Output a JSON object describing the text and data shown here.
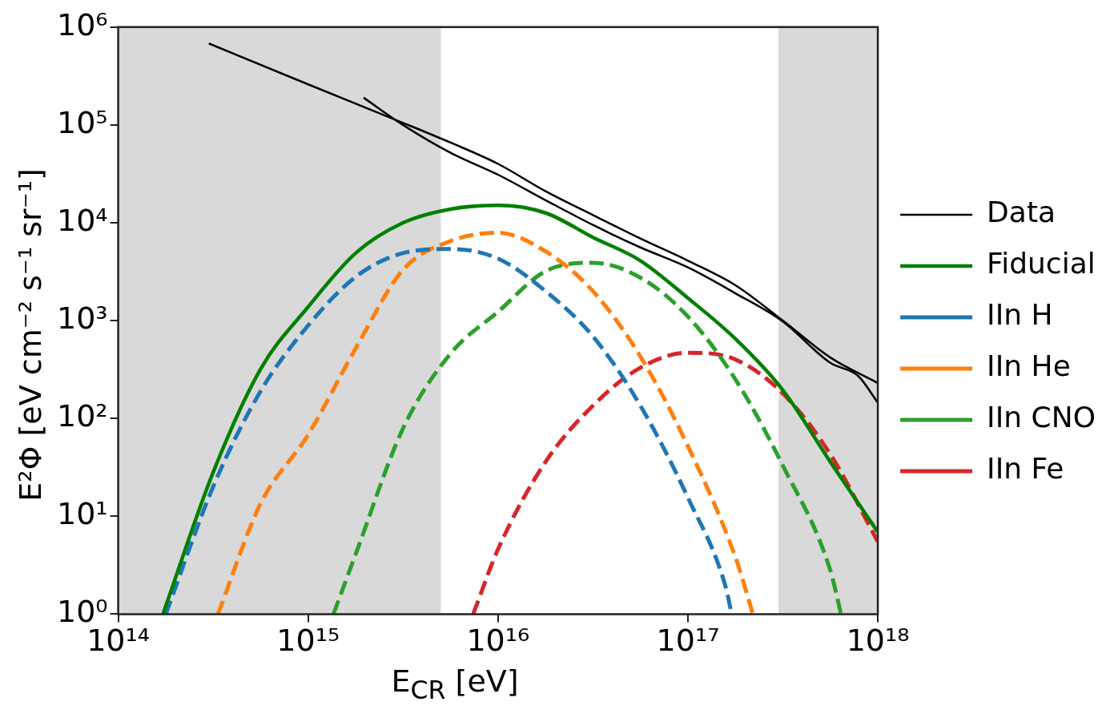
{
  "chart_data": {
    "type": "line",
    "xlabel": "E$_{CR}$ [eV]",
    "ylabel": "E²Φ [eV cm⁻² s⁻¹ sr⁻¹]",
    "log": "xy",
    "xlim": [
      100000000000000.0,
      1e+18
    ],
    "xticks": [
      {
        "value": 100000000000000.0,
        "label": "10¹⁴"
      },
      {
        "value": 1000000000000000.0,
        "label": "10¹⁵"
      },
      {
        "value": 1e+16,
        "label": "10¹⁶"
      },
      {
        "value": 1e+17,
        "label": "10¹⁷"
      },
      {
        "value": 1e+18,
        "label": "10¹⁸"
      }
    ],
    "ylim": [
      1,
      1000000.0
    ],
    "yticks": [
      {
        "value": 1,
        "label": "10⁰"
      },
      {
        "value": 10,
        "label": "10¹"
      },
      {
        "value": 100,
        "label": "10²"
      },
      {
        "value": 1000,
        "label": "10³"
      },
      {
        "value": 10000,
        "label": "10⁴"
      },
      {
        "value": 100000,
        "label": "10⁵"
      },
      {
        "value": 1000000,
        "label": "10⁶"
      }
    ],
    "grid": false,
    "legend": "right",
    "bands": [
      {
        "axis": "x",
        "from": 100000000000000.0,
        "to": 5000000000000000.0,
        "color": "#d9d9d9"
      },
      {
        "axis": "x",
        "from": 3e+17,
        "to": 1e+18,
        "color": "#d9d9d9"
      }
    ],
    "series": [
      {
        "name": "Data",
        "color": "#000000",
        "line_style": "solid",
        "x": [
          300000000000000.0,
          1000000000000000.0,
          3160000000000000.0,
          5620000000000000.0,
          1e+16,
          1.78e+16,
          3.16e+16,
          5.62e+16,
          1e+17,
          1.78e+17,
          3.16e+17,
          5.62e+17,
          1e+18
        ],
        "values": [
          680000,
          260000,
          105000,
          66000,
          40000,
          21000,
          12000,
          6900,
          4100,
          2300,
          1000,
          420,
          230
        ]
      },
      {
        "color": "#000000",
        "line_style": "solid",
        "x": [
          1960000000000000.0,
          3160000000000000.0,
          5620000000000000.0,
          1e+16,
          1.78e+16,
          3.16e+16,
          5.62e+16,
          1e+17,
          1.78e+17,
          3.16e+17,
          5.62e+17,
          7.9e+17,
          1e+18
        ],
        "values": [
          190000,
          100000,
          52000,
          31000,
          17000,
          9500,
          5600,
          3500,
          1900,
          980,
          370,
          270,
          145
        ]
      },
      {
        "name": "Fiducial",
        "color": "#008000",
        "line_style": "solid",
        "x": [
          172000000000000.0,
          316000000000000.0,
          562000000000000.0,
          1000000000000000.0,
          1780000000000000.0,
          3160000000000000.0,
          5620000000000000.0,
          1e+16,
          1.78e+16,
          3.16e+16,
          5.62e+16,
          1e+17,
          1.78e+17,
          3.16e+17,
          5.62e+17,
          1e+18
        ],
        "values": [
          1,
          28,
          320,
          1380,
          4900,
          10000,
          13800,
          15100,
          12600,
          7100,
          4100,
          1700,
          650,
          195,
          36,
          6.9
        ]
      },
      {
        "name": "IIn H",
        "color": "#1f77b4",
        "line_style": "dashed",
        "x": [
          178000000000000.0,
          316000000000000.0,
          562000000000000.0,
          1000000000000000.0,
          1780000000000000.0,
          3160000000000000.0,
          5620000000000000.0,
          1e+16,
          1.78e+16,
          3.16e+16,
          5.62e+16,
          1e+17,
          1.58e+17,
          1.7e+17
        ],
        "values": [
          1,
          20,
          190,
          890,
          2800,
          4900,
          5400,
          4300,
          2000,
          690,
          135,
          15.5,
          1.9,
          1
        ]
      },
      {
        "name": "IIn He",
        "color": "#ff7f0e",
        "line_style": "dashed",
        "x": [
          335000000000000.0,
          562000000000000.0,
          1000000000000000.0,
          1780000000000000.0,
          3160000000000000.0,
          5620000000000000.0,
          1e+16,
          1.78e+16,
          3.16e+16,
          5.62e+16,
          1e+17,
          1.78e+17,
          2.2e+17
        ],
        "values": [
          1,
          13.5,
          68,
          520,
          3300,
          6500,
          7900,
          5100,
          2000,
          430,
          52,
          3.8,
          1
        ]
      },
      {
        "name": "IIn CNO",
        "color": "#2ca02c",
        "line_style": "dashed",
        "x": [
          1360000000000000.0,
          1780000000000000.0,
          3160000000000000.0,
          5620000000000000.0,
          1e+16,
          1.78e+16,
          3.16e+16,
          5.62e+16,
          1e+17,
          1.78e+17,
          3.16e+17,
          5.62e+17,
          6.4e+17
        ],
        "values": [
          1,
          4.1,
          79,
          460,
          1230,
          3200,
          3900,
          2750,
          1100,
          250,
          33,
          2.8,
          1
        ]
      },
      {
        "name": "IIn Fe",
        "color": "#d62728",
        "line_style": "dashed",
        "x": [
          7400000000000000.0,
          1e+16,
          1.78e+16,
          3.16e+16,
          5.62e+16,
          1e+17,
          1.78e+17,
          3.16e+17,
          5.62e+17,
          1e+18
        ],
        "values": [
          1,
          4.6,
          36,
          135,
          330,
          470,
          400,
          180,
          43,
          5.5
        ]
      }
    ]
  }
}
